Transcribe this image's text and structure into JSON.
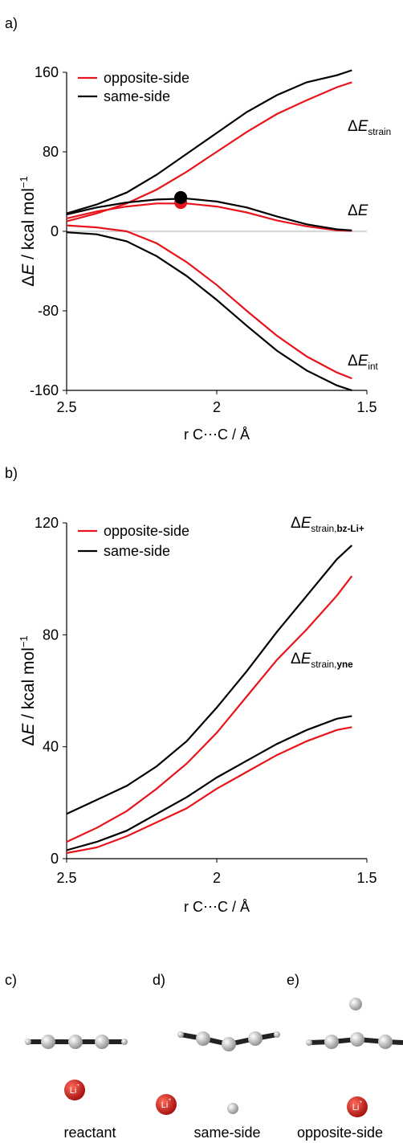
{
  "chart_data": [
    {
      "type": "line",
      "panel": "a)",
      "x": [
        2.5,
        2.4,
        2.3,
        2.2,
        2.1,
        2.0,
        1.9,
        1.8,
        1.7,
        1.6,
        1.55
      ],
      "xlim": [
        2.5,
        1.5
      ],
      "xticks": [
        2.5,
        2,
        1.5
      ],
      "ylim": [
        -160,
        160
      ],
      "yticks": [
        160,
        80,
        0,
        -80,
        -160
      ],
      "zero_line": true,
      "legend": "top-left",
      "xlabel": "r C⋯C / Å",
      "ylabel": [
        {
          "text": "Δ"
        },
        {
          "text": "E",
          "style": "italic"
        },
        {
          "text": " / kcal mol"
        },
        {
          "text": "−1",
          "style": "sup"
        }
      ],
      "curve_labels": [
        [
          {
            "text": "Δ"
          },
          {
            "text": "E",
            "style": "italic"
          },
          {
            "text": "strain",
            "style": "sub"
          }
        ],
        [
          {
            "text": "Δ"
          },
          {
            "text": "E",
            "style": "italic"
          }
        ],
        [
          {
            "text": "Δ"
          },
          {
            "text": "E",
            "style": "italic"
          },
          {
            "text": "int",
            "style": "sub"
          }
        ]
      ],
      "series": [
        {
          "name": "opposite-side",
          "color": "#e8141b",
          "values": [
            [
              10,
              18,
              28,
              42,
              60,
              80,
              100,
              118,
              132,
              145,
              150
            ],
            [
              13,
              20,
              25,
              28,
              28,
              25,
              19,
              11,
              5,
              1,
              0.5
            ],
            [
              6,
              4,
              0,
              -12,
              -31,
              -54,
              -80,
              -105,
              -126,
              -142,
              -148
            ]
          ]
        },
        {
          "name": "same-side",
          "color": "#000000",
          "values": [
            [
              18,
              27,
              39,
              57,
              78,
              99,
              120,
              137,
              150,
              157,
              162
            ],
            [
              17,
              24,
              29,
              32,
              33,
              30,
              24,
              15,
              7,
              2,
              1
            ],
            [
              -1,
              -3,
              -10,
              -25,
              -45,
              -69,
              -95,
              -120,
              -140,
              -155,
              -160
            ]
          ]
        }
      ],
      "markers": [
        {
          "x": 2.12,
          "y": 29,
          "color": "#e8141b"
        },
        {
          "x": 2.12,
          "y": 34,
          "color": "#000000"
        }
      ]
    },
    {
      "type": "line",
      "panel": "b)",
      "x": [
        2.5,
        2.4,
        2.3,
        2.2,
        2.1,
        2.0,
        1.9,
        1.8,
        1.7,
        1.6,
        1.55
      ],
      "xlim": [
        2.5,
        1.5
      ],
      "xticks": [
        2.5,
        2,
        1.5
      ],
      "ylim": [
        0,
        120
      ],
      "yticks": [
        0,
        40,
        80,
        120
      ],
      "zero_line": false,
      "legend": "top-left",
      "xlabel": "r C⋯C / Å",
      "ylabel": [
        {
          "text": "Δ"
        },
        {
          "text": "E",
          "style": "italic"
        },
        {
          "text": " / kcal mol"
        },
        {
          "text": "−1",
          "style": "sup"
        }
      ],
      "curve_labels": [
        [
          {
            "text": "Δ"
          },
          {
            "text": "E",
            "style": "italic"
          },
          {
            "text": "strain,",
            "style": "sub"
          },
          {
            "text": "bz-Li+",
            "style": "sub-bold"
          }
        ],
        [
          {
            "text": "Δ"
          },
          {
            "text": "E",
            "style": "italic"
          },
          {
            "text": "strain,",
            "style": "sub"
          },
          {
            "text": "yne",
            "style": "sub-bold"
          }
        ]
      ],
      "series": [
        {
          "name": "opposite-side",
          "color": "#e8141b",
          "values": [
            [
              6,
              11,
              17,
              25,
              34,
              45,
              58,
              71,
              82,
              94,
              101
            ],
            [
              2,
              4,
              8,
              13,
              18,
              25,
              31,
              37,
              42,
              46,
              47
            ]
          ]
        },
        {
          "name": "same-side",
          "color": "#000000",
          "values": [
            [
              16,
              21,
              26,
              33,
              42,
              54,
              67,
              81,
              94,
              107,
              112
            ],
            [
              3,
              6,
              10,
              16,
              22,
              29,
              35,
              41,
              46,
              50,
              51
            ]
          ]
        }
      ],
      "markers": []
    }
  ],
  "structures": {
    "ion": [
      {
        "text": "Li"
      },
      {
        "text": "+",
        "style": "sup"
      }
    ],
    "panels": [
      {
        "panel": "c)",
        "label": "reactant",
        "color": "#000000"
      },
      {
        "panel": "d)",
        "label": "same-side",
        "color": "#000000"
      },
      {
        "panel": "e)",
        "label": "opposite-side",
        "color": "#e8141b"
      }
    ]
  }
}
